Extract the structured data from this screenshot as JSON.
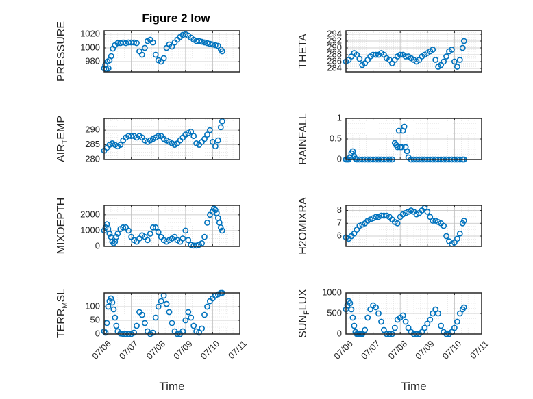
{
  "figure": {
    "title": "Figure 2 low",
    "marker_color": "#0072BD"
  },
  "chart_data": [
    {
      "type": "scatter",
      "name": "PRESSURE",
      "title": "Figure 2 low",
      "ylabel": "PRESSURE",
      "xlabel": "",
      "ylim": [
        965,
        1025
      ],
      "yticks": [
        980,
        1000,
        1020
      ],
      "ytick_labels": [
        "980",
        "1000",
        "1020"
      ],
      "xlim": [
        0,
        5
      ],
      "xticks": [
        0,
        1,
        2,
        3,
        4,
        5
      ],
      "xtick_labels": [
        "",
        "",
        "",
        "",
        "",
        ""
      ],
      "grid": true,
      "x": [
        0.0,
        0.04,
        0.08,
        0.12,
        0.16,
        0.2,
        0.26,
        0.32,
        0.4,
        0.5,
        0.6,
        0.7,
        0.8,
        0.9,
        1.0,
        1.1,
        1.2,
        1.3,
        1.4,
        1.5,
        1.6,
        1.7,
        1.8,
        1.9,
        2.0,
        2.1,
        2.2,
        2.3,
        2.4,
        2.5,
        2.6,
        2.7,
        2.8,
        2.9,
        3.0,
        3.1,
        3.2,
        3.3,
        3.4,
        3.5,
        3.6,
        3.7,
        3.8,
        3.9,
        4.0,
        4.1,
        4.2,
        4.3,
        4.35
      ],
      "y": [
        970,
        975,
        969,
        980,
        970,
        982,
        988,
        999,
        1004,
        1007,
        1007,
        1008,
        1007,
        1008,
        1008,
        1008,
        1007,
        995,
        990,
        1000,
        1010,
        1012,
        1008,
        990,
        982,
        980,
        985,
        1000,
        1005,
        1002,
        1008,
        1012,
        1016,
        1019,
        1020,
        1018,
        1015,
        1012,
        1010,
        1010,
        1009,
        1008,
        1007,
        1006,
        1005,
        1004,
        1003,
        998,
        995
      ]
    },
    {
      "type": "scatter",
      "name": "THETA",
      "ylabel": "THETA",
      "xlabel": "",
      "ylim": [
        283,
        295
      ],
      "yticks": [
        284,
        286,
        288,
        290,
        292,
        294
      ],
      "ytick_labels": [
        "284",
        "286",
        "288",
        "290",
        "292",
        "294"
      ],
      "xlim": [
        0,
        5
      ],
      "xticks": [
        0,
        1,
        2,
        3,
        4,
        5
      ],
      "xtick_labels": [
        "",
        "",
        "",
        "",
        "",
        ""
      ],
      "grid": true,
      "x": [
        0.0,
        0.1,
        0.2,
        0.3,
        0.4,
        0.5,
        0.6,
        0.7,
        0.8,
        0.9,
        1.0,
        1.1,
        1.2,
        1.3,
        1.4,
        1.5,
        1.6,
        1.7,
        1.8,
        1.9,
        2.0,
        2.1,
        2.2,
        2.3,
        2.4,
        2.5,
        2.6,
        2.7,
        2.8,
        2.9,
        3.0,
        3.1,
        3.2,
        3.3,
        3.4,
        3.5,
        3.6,
        3.7,
        3.8,
        3.9,
        4.0,
        4.1,
        4.2,
        4.3,
        4.35
      ],
      "y": [
        286.0,
        286.5,
        287.5,
        288.5,
        288.0,
        286.8,
        285.0,
        285.5,
        286.5,
        287.5,
        288.0,
        288.0,
        288.0,
        288.5,
        288.0,
        287.0,
        286.5,
        285.5,
        286.5,
        287.5,
        288.0,
        288.0,
        287.5,
        287.5,
        287.0,
        286.5,
        286.0,
        286.5,
        287.5,
        288.0,
        288.5,
        289.0,
        289.5,
        286.5,
        284.5,
        285.0,
        286.0,
        287.5,
        289.0,
        289.5,
        286.0,
        284.5,
        286.5,
        290.0,
        292.0
      ]
    },
    {
      "type": "scatter",
      "name": "AIR_TEMP",
      "ylabel": "AIR_TEMP",
      "xlabel": "",
      "ylim": [
        280,
        294
      ],
      "yticks": [
        280,
        285,
        290
      ],
      "ytick_labels": [
        "280",
        "285",
        "290"
      ],
      "xlim": [
        0,
        5
      ],
      "xticks": [
        0,
        1,
        2,
        3,
        4,
        5
      ],
      "xtick_labels": [
        "",
        "",
        "",
        "",
        "",
        ""
      ],
      "grid": true,
      "x": [
        0.0,
        0.1,
        0.2,
        0.3,
        0.4,
        0.5,
        0.6,
        0.7,
        0.8,
        0.9,
        1.0,
        1.1,
        1.2,
        1.3,
        1.4,
        1.5,
        1.6,
        1.7,
        1.8,
        1.9,
        2.0,
        2.1,
        2.2,
        2.3,
        2.4,
        2.5,
        2.6,
        2.7,
        2.8,
        2.9,
        3.0,
        3.1,
        3.2,
        3.3,
        3.4,
        3.5,
        3.6,
        3.7,
        3.8,
        3.9,
        4.0,
        4.1,
        4.2,
        4.3,
        4.35
      ],
      "y": [
        283.0,
        284.0,
        285.0,
        285.5,
        285.0,
        284.5,
        285.0,
        286.5,
        287.5,
        288.0,
        288.0,
        288.0,
        287.5,
        288.0,
        287.5,
        286.5,
        286.0,
        286.5,
        287.0,
        287.5,
        288.0,
        288.0,
        287.0,
        286.5,
        286.0,
        285.5,
        285.0,
        285.5,
        286.5,
        287.5,
        288.5,
        289.0,
        289.5,
        288.0,
        285.5,
        285.0,
        286.0,
        287.0,
        288.5,
        290.0,
        286.0,
        284.5,
        286.5,
        291.0,
        293.0
      ]
    },
    {
      "type": "scatter",
      "name": "RAINFALL",
      "ylabel": "RAINFALL",
      "xlabel": "",
      "ylim": [
        0,
        1
      ],
      "yticks": [
        0,
        0.5,
        1
      ],
      "ytick_labels": [
        "0",
        "0.5",
        "1"
      ],
      "xlim": [
        0,
        5
      ],
      "xticks": [
        0,
        1,
        2,
        3,
        4,
        5
      ],
      "xtick_labels": [
        "",
        "",
        "",
        "",
        "",
        ""
      ],
      "grid": true,
      "x": [
        0.0,
        0.05,
        0.1,
        0.15,
        0.2,
        0.25,
        0.3,
        0.35,
        0.4,
        0.5,
        0.6,
        0.7,
        0.8,
        0.9,
        1.0,
        1.1,
        1.2,
        1.3,
        1.4,
        1.5,
        1.6,
        1.7,
        1.8,
        1.85,
        1.9,
        1.95,
        2.0,
        2.05,
        2.1,
        2.15,
        2.2,
        2.25,
        2.3,
        2.4,
        2.5,
        2.6,
        2.7,
        2.8,
        2.9,
        3.0,
        3.1,
        3.2,
        3.3,
        3.4,
        3.5,
        3.6,
        3.7,
        3.8,
        3.9,
        4.0,
        4.1,
        4.2,
        4.3,
        4.35
      ],
      "y": [
        0,
        0,
        0,
        0.05,
        0.15,
        0.2,
        0.08,
        0.02,
        0,
        0,
        0,
        0,
        0,
        0,
        0,
        0,
        0,
        0,
        0,
        0,
        0,
        0,
        0.4,
        0.35,
        0.3,
        0.7,
        0.3,
        0.3,
        0.7,
        0.8,
        0.3,
        0.2,
        0.05,
        0,
        0,
        0,
        0,
        0,
        0,
        0,
        0,
        0,
        0,
        0,
        0,
        0,
        0,
        0,
        0,
        0,
        0,
        0,
        0,
        0
      ]
    },
    {
      "type": "scatter",
      "name": "MIXDEPTH",
      "ylabel": "MIXDEPTH",
      "xlabel": "",
      "ylim": [
        0,
        2600
      ],
      "yticks": [
        0,
        1000,
        2000
      ],
      "ytick_labels": [
        "0",
        "1000",
        "2000"
      ],
      "xlim": [
        0,
        5
      ],
      "xticks": [
        0,
        1,
        2,
        3,
        4,
        5
      ],
      "xtick_labels": [
        "",
        "",
        "",
        "",
        "",
        ""
      ],
      "grid": true,
      "x": [
        0.0,
        0.05,
        0.1,
        0.15,
        0.2,
        0.25,
        0.3,
        0.35,
        0.4,
        0.45,
        0.5,
        0.6,
        0.7,
        0.8,
        0.9,
        1.0,
        1.1,
        1.2,
        1.3,
        1.4,
        1.5,
        1.6,
        1.7,
        1.8,
        1.9,
        2.0,
        2.1,
        2.2,
        2.3,
        2.4,
        2.5,
        2.6,
        2.7,
        2.8,
        2.9,
        3.0,
        3.1,
        3.2,
        3.3,
        3.4,
        3.5,
        3.6,
        3.7,
        3.8,
        3.9,
        4.0,
        4.05,
        4.1,
        4.15,
        4.2,
        4.25,
        4.3,
        4.35
      ],
      "y": [
        1000,
        1200,
        1400,
        1100,
        800,
        600,
        300,
        200,
        300,
        600,
        800,
        1100,
        1200,
        1200,
        1000,
        600,
        400,
        300,
        500,
        700,
        600,
        400,
        800,
        1200,
        1200,
        900,
        600,
        400,
        300,
        400,
        500,
        600,
        400,
        300,
        500,
        1000,
        400,
        100,
        50,
        50,
        100,
        200,
        600,
        1500,
        2000,
        2200,
        2400,
        2300,
        2100,
        1800,
        1500,
        1200,
        1000
      ]
    },
    {
      "type": "scatter",
      "name": "H2OMIXRA",
      "ylabel": "H2OMIXRA",
      "xlabel": "",
      "ylim": [
        5.2,
        8.4
      ],
      "yticks": [
        6,
        7,
        8
      ],
      "ytick_labels": [
        "6",
        "7",
        "8"
      ],
      "xlim": [
        0,
        5
      ],
      "xticks": [
        0,
        1,
        2,
        3,
        4,
        5
      ],
      "xtick_labels": [
        "",
        "",
        "",
        "",
        "",
        ""
      ],
      "grid": true,
      "x": [
        0.0,
        0.1,
        0.2,
        0.3,
        0.4,
        0.5,
        0.6,
        0.7,
        0.8,
        0.9,
        1.0,
        1.1,
        1.2,
        1.3,
        1.4,
        1.5,
        1.6,
        1.7,
        1.8,
        1.9,
        2.0,
        2.1,
        2.2,
        2.3,
        2.4,
        2.5,
        2.6,
        2.7,
        2.8,
        2.9,
        3.0,
        3.1,
        3.2,
        3.3,
        3.4,
        3.5,
        3.6,
        3.7,
        3.8,
        3.9,
        4.0,
        4.1,
        4.2,
        4.3,
        4.35
      ],
      "y": [
        5.9,
        5.8,
        6.0,
        6.2,
        6.5,
        6.8,
        6.9,
        7.0,
        7.2,
        7.3,
        7.4,
        7.5,
        7.5,
        7.6,
        7.6,
        7.6,
        7.5,
        7.3,
        7.1,
        7.0,
        7.5,
        7.7,
        7.8,
        7.9,
        8.0,
        7.9,
        7.7,
        7.8,
        8.0,
        8.2,
        7.9,
        7.5,
        7.2,
        7.2,
        7.1,
        7.0,
        6.8,
        6.0,
        5.6,
        5.4,
        5.5,
        5.8,
        6.2,
        7.0,
        7.2
      ]
    },
    {
      "type": "scatter",
      "name": "TERR_MSL",
      "ylabel": "TERR_MSL",
      "xlabel": "Time",
      "ylim": [
        0,
        150
      ],
      "yticks": [
        0,
        50,
        100
      ],
      "ytick_labels": [
        "0",
        "50",
        "100"
      ],
      "xlim": [
        0,
        5
      ],
      "xticks": [
        0,
        1,
        2,
        3,
        4,
        5
      ],
      "xtick_labels": [
        "07/06",
        "07/07",
        "07/08",
        "07/09",
        "07/10",
        "07/11"
      ],
      "grid": true,
      "x": [
        0.0,
        0.05,
        0.1,
        0.15,
        0.2,
        0.25,
        0.3,
        0.35,
        0.4,
        0.45,
        0.5,
        0.6,
        0.7,
        0.8,
        0.9,
        1.0,
        1.1,
        1.2,
        1.3,
        1.4,
        1.5,
        1.6,
        1.7,
        1.8,
        1.9,
        2.0,
        2.1,
        2.2,
        2.3,
        2.4,
        2.5,
        2.6,
        2.7,
        2.8,
        2.9,
        3.0,
        3.1,
        3.2,
        3.3,
        3.4,
        3.5,
        3.6,
        3.7,
        3.8,
        3.9,
        4.0,
        4.1,
        4.2,
        4.3,
        4.35
      ],
      "y": [
        10,
        5,
        40,
        100,
        120,
        130,
        115,
        90,
        60,
        30,
        10,
        2,
        0,
        0,
        0,
        0,
        5,
        30,
        80,
        70,
        40,
        10,
        0,
        5,
        60,
        100,
        120,
        140,
        110,
        80,
        40,
        10,
        0,
        0,
        10,
        50,
        80,
        60,
        30,
        10,
        5,
        20,
        70,
        100,
        120,
        130,
        140,
        145,
        150,
        150
      ]
    },
    {
      "type": "scatter",
      "name": "SUN_FLUX",
      "ylabel": "SUN_FLUX",
      "xlabel": "Time",
      "ylim": [
        0,
        1000
      ],
      "yticks": [
        0,
        500,
        1000
      ],
      "ytick_labels": [
        "0",
        "500",
        "1000"
      ],
      "xlim": [
        0,
        5
      ],
      "xticks": [
        0,
        1,
        2,
        3,
        4,
        5
      ],
      "xtick_labels": [
        "07/06",
        "07/07",
        "07/08",
        "07/09",
        "07/10",
        "07/11"
      ],
      "grid": true,
      "x": [
        0.0,
        0.05,
        0.1,
        0.15,
        0.2,
        0.25,
        0.3,
        0.35,
        0.4,
        0.45,
        0.5,
        0.55,
        0.6,
        0.7,
        0.8,
        0.9,
        1.0,
        1.1,
        1.2,
        1.3,
        1.4,
        1.5,
        1.6,
        1.7,
        1.8,
        1.9,
        2.0,
        2.1,
        2.2,
        2.3,
        2.4,
        2.5,
        2.6,
        2.7,
        2.8,
        2.9,
        3.0,
        3.1,
        3.2,
        3.3,
        3.4,
        3.5,
        3.6,
        3.7,
        3.8,
        3.9,
        4.0,
        4.1,
        4.2,
        4.3,
        4.35
      ],
      "y": [
        600,
        700,
        800,
        750,
        600,
        400,
        200,
        50,
        0,
        0,
        0,
        0,
        0,
        100,
        400,
        600,
        700,
        650,
        500,
        300,
        100,
        0,
        0,
        0,
        150,
        350,
        400,
        450,
        300,
        150,
        50,
        0,
        0,
        0,
        50,
        150,
        250,
        350,
        500,
        600,
        500,
        200,
        50,
        0,
        0,
        50,
        150,
        300,
        500,
        600,
        650
      ]
    }
  ]
}
